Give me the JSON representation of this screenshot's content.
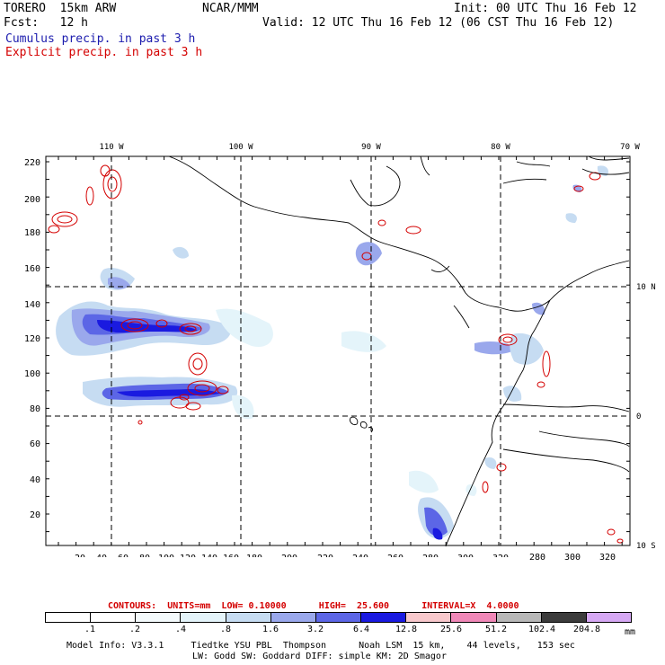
{
  "header": {
    "model_name": "TORERO  15km ARW",
    "org": "NCAR/MMM",
    "init": "Init: 00 UTC Thu 16 Feb 12",
    "fcst": "Fcst:   12 h",
    "valid": "Valid: 12 UTC Thu 16 Feb 12 (06 CST Thu 16 Feb 12)",
    "field1": "Cumulus precip. in past 3 h",
    "field2": "Explicit precip. in past 3 h"
  },
  "colors": {
    "field1": "#1c1cae",
    "field2": "#d40000",
    "grid": "#000000",
    "coast": "#000000"
  },
  "map": {
    "lon_labels": [
      "110 W",
      "100 W",
      "90 W",
      "80 W",
      "70 W"
    ],
    "lat_labels": [
      "10 N",
      "0",
      "10 S"
    ],
    "y_ticks": [
      "220",
      "200",
      "180",
      "160",
      "140",
      "120",
      "100",
      "80",
      "60",
      "40",
      "20"
    ],
    "x_ticks": [
      "20",
      "40",
      "60",
      "80",
      "100",
      "120",
      "140",
      "160",
      "180",
      "200",
      "220",
      "240",
      "260",
      "280",
      "300",
      "320"
    ]
  },
  "contours": {
    "text": "CONTOURS:  UNITS=mm  LOW= 0.10000      HIGH=  25.600      INTERVAL=X  4.0000"
  },
  "scale": {
    "labels": [
      ".1",
      ".2",
      ".4",
      ".8",
      "1.6",
      "3.2",
      "6.4",
      "12.8",
      "25.6",
      "51.2",
      "102.4",
      "204.8"
    ],
    "units": "mm",
    "colors": [
      "#ffffff",
      "#ffffff",
      "#f4fafc",
      "#e4f4fa",
      "#c6dcf2",
      "#9aa8ec",
      "#5c66e6",
      "#1a1ae0",
      "#f8c8cc",
      "#f088b8",
      "#b8b8b8",
      "#3c3c3c",
      "#d6a8f4"
    ]
  },
  "footer": {
    "line1": "Model Info: V3.3.1     Tiedtke YSU PBL  Thompson      Noah LSM  15 km,    44 levels,   153 sec",
    "line2": "LW: Godd SW: Goddard DIFF: simple KM: 2D Smagor"
  }
}
